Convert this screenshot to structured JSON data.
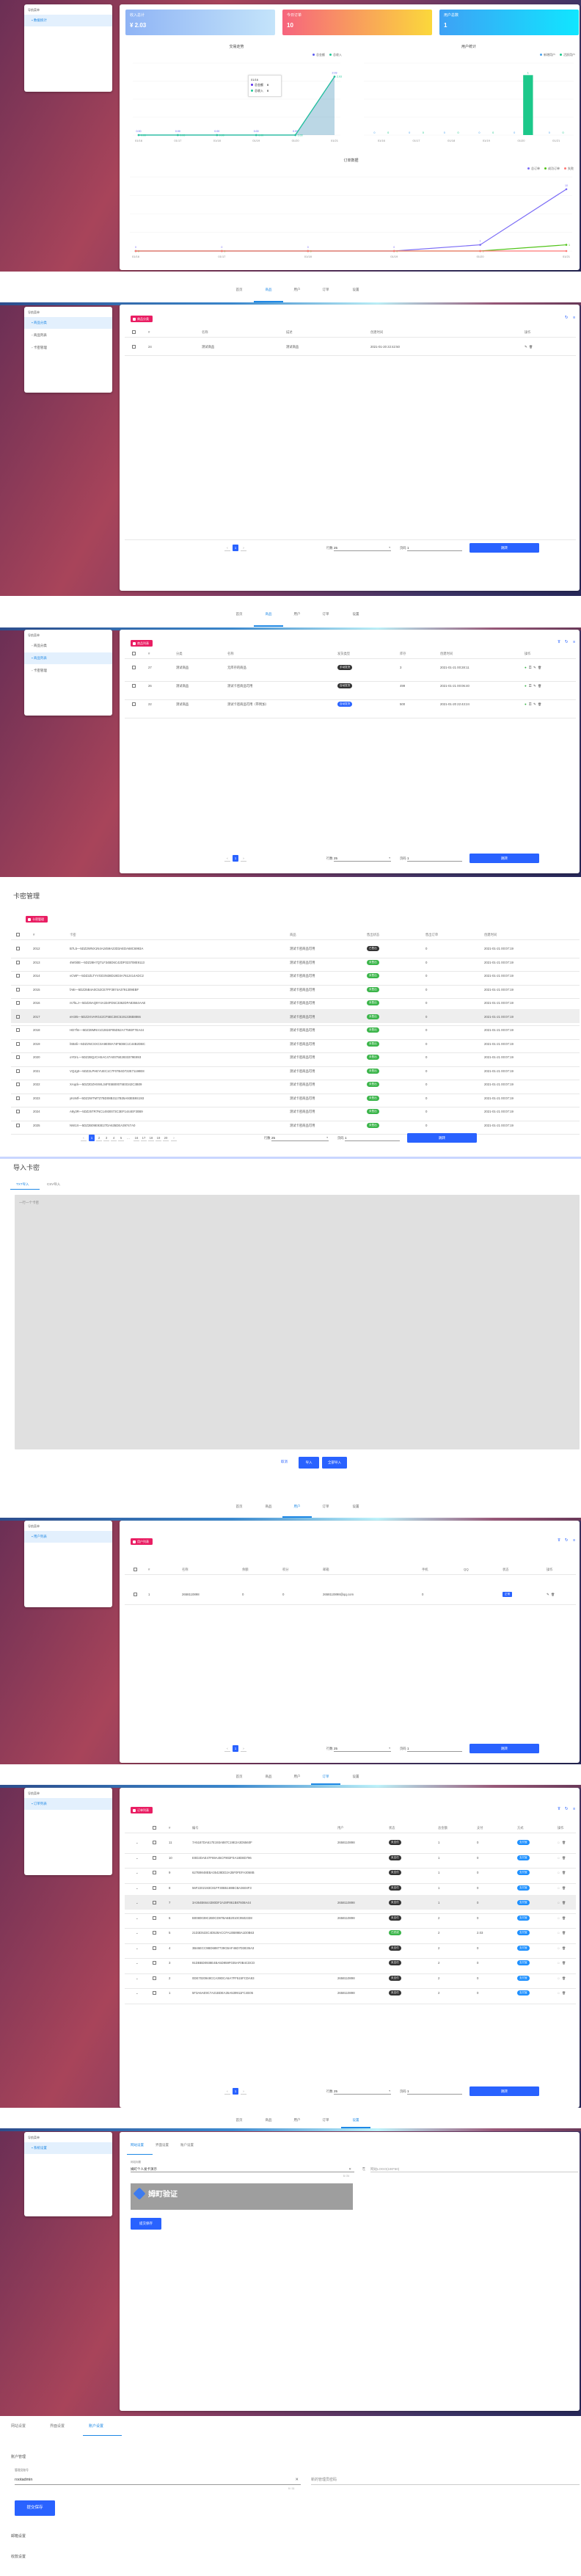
{
  "nav": {
    "items": [
      "首页",
      "商品",
      "用户",
      "订单",
      "设置"
    ]
  },
  "sidebar_header": "导航菜单",
  "dashboard": {
    "sidebar": [
      {
        "label": "数据统计",
        "icon": "home-icon"
      }
    ],
    "stats": [
      {
        "label": "收入总计",
        "value": "¥ 2.03"
      },
      {
        "label": "今日订单",
        "value": "10"
      },
      {
        "label": "用户总数",
        "value": "1"
      }
    ],
    "tooltip": {
      "date": "01/16",
      "rows": [
        {
          "name": "总金额",
          "value": "0"
        },
        {
          "name": "总收入",
          "value": "0"
        }
      ]
    }
  },
  "chart_data": [
    {
      "type": "line",
      "title": "交易走势",
      "categories": [
        "01/16",
        "01/17",
        "01/18",
        "01/19",
        "01/20",
        "01/21"
      ],
      "ylim": [
        0,
        2.5
      ],
      "grid": true,
      "legend": "top-right",
      "series": [
        {
          "name": "总金额",
          "values": [
            0,
            0,
            0,
            0,
            0,
            2.03
          ],
          "color": "#5b5bf0"
        },
        {
          "name": "总收入",
          "values": [
            0,
            0,
            0,
            0,
            0,
            2.03
          ],
          "color": "#20c997"
        }
      ]
    },
    {
      "type": "bar",
      "title": "用户统计",
      "categories": [
        "01/16",
        "01/17",
        "01/18",
        "01/19",
        "01/20",
        "01/21"
      ],
      "ylim": [
        0,
        1.2
      ],
      "grid": true,
      "legend": "top-right",
      "series": [
        {
          "name": "新增用户",
          "values": [
            0,
            0,
            0,
            0,
            0,
            0
          ],
          "color": "#4aa3f0"
        },
        {
          "name": "活跃用户",
          "values": [
            0,
            0,
            0,
            0,
            1,
            0
          ],
          "color": "#1cc88a"
        }
      ]
    },
    {
      "type": "line",
      "title": "订单数据",
      "categories": [
        "01/16",
        "01/17",
        "01/18",
        "01/19",
        "01/20",
        "01/21"
      ],
      "ylim": [
        0,
        12
      ],
      "grid": true,
      "legend": "top-right",
      "series": [
        {
          "name": "总订单",
          "values": [
            0,
            0,
            0,
            0,
            1,
            10
          ],
          "color": "#7b6cf6"
        },
        {
          "name": "成功订单",
          "values": [
            0,
            0,
            0,
            0,
            0,
            1
          ],
          "color": "#52c41a"
        },
        {
          "name": "失败",
          "values": [
            0,
            0,
            0,
            0,
            0,
            0
          ],
          "color": "#ff7875"
        }
      ]
    }
  ],
  "goods_sidebar": [
    {
      "label": "商品分类"
    },
    {
      "label": "商品列表"
    },
    {
      "label": "卡密管理"
    }
  ],
  "pagination": {
    "rows_label": "行数",
    "rows_value": "25",
    "page_label": "页码",
    "page_value": "1",
    "jump": "跳转",
    "prev": "‹",
    "next": "›"
  },
  "category": {
    "tag": "商品分类",
    "columns": [
      "#",
      "名称",
      "描述",
      "创建时间",
      "操作"
    ],
    "rows": [
      {
        "id": "24",
        "name": "测试商品",
        "desc": "测试商品",
        "created": "2021-01-20 22:42:50"
      }
    ],
    "pages": [
      "1"
    ]
  },
  "goods": {
    "tag": "商品列表",
    "columns": [
      "#",
      "分类",
      "名称",
      "发货类型",
      "库存",
      "创建时间",
      "操作"
    ],
    "rows": [
      {
        "id": "27",
        "category": "测试商品",
        "name": "无库存的商品",
        "delivery": "手动发货",
        "delivery_color": "#333333",
        "stock": "3",
        "created": "2021-01-21 00:28:11"
      },
      {
        "id": "26",
        "category": "测试商品",
        "name": "测试卡密商品可用",
        "delivery": "自动发货",
        "delivery_color": "#333333",
        "stock": "499",
        "created": "2021-01-21 00:06:40"
      },
      {
        "id": "22",
        "category": "测试商品",
        "name": "测试卡密商品可用（带附加）",
        "delivery": "自动发货",
        "delivery_color": "#2962ff",
        "stock": "500",
        "created": "2021-01-20 22:43:24"
      }
    ],
    "pages": [
      "1"
    ]
  },
  "cards": {
    "title": "卡密管理",
    "tag": "卡密管理",
    "columns": [
      "#",
      "卡密",
      "商品",
      "售出状态",
      "售出订单",
      "创建时间"
    ],
    "rows": [
      {
        "id": "2012",
        "key": "B7L5—5DZ2WNX1N4A2459A23D3AEDA68C6993A",
        "goods": "测试卡密商品可用",
        "status": "已售出",
        "status_color": "#333333",
        "order": "0",
        "created": "2021-01-21 00:07:19"
      },
      {
        "id": "2013",
        "key": "4W0i0E—5DZ28H7QTLF34BD6C42DF023708E9113",
        "goods": "测试卡密商品可用",
        "status": "未售出",
        "status_color": "#3bb54a",
        "order": "0",
        "created": "2021-01-21 00:07:19"
      },
      {
        "id": "2014",
        "key": "vCWF—5DZ2ZLTYVGD3N38D19D3A7612414ADC2",
        "goods": "测试卡密商品可用",
        "status": "未售出",
        "status_color": "#3bb54a",
        "order": "0",
        "created": "2021-01-21 00:07:19"
      },
      {
        "id": "2015",
        "key": "fA8i—5DZ25B4A0C52CE7FF3874A3791309EBF",
        "goods": "测试卡密商品可用",
        "status": "未售出",
        "status_color": "#3bb54a",
        "order": "0",
        "created": "2021-01-21 00:07:19"
      },
      {
        "id": "2016",
        "key": "rs7kLJ—5DZ26AQ9Y4A334FD5C3362DFA83664AAE",
        "goods": "测试卡密商品可用",
        "status": "未售出",
        "status_color": "#3bb54a",
        "order": "0",
        "created": "2021-01-21 00:07:19"
      },
      {
        "id": "2017",
        "key": "eH3I5—5DZ2XVARG42CF5BC38C5191336B8866",
        "goods": "测试卡密商品可用",
        "status": "未售出",
        "status_color": "#3bb54a",
        "order": "0",
        "created": "2021-01-21 00:07:19"
      },
      {
        "id": "2018",
        "key": "HD7fm—5DZ28MNV1G2824F85D52A77593F7EA44",
        "goods": "测试卡密商品可用",
        "status": "未售出",
        "status_color": "#3bb54a",
        "order": "0",
        "created": "2021-01-21 00:07:19"
      },
      {
        "id": "2019",
        "key": "lSB4li—5DZ2NCSXCSA9E08A74F5DBC1C44B2DBC",
        "goods": "测试卡密商品可用",
        "status": "未售出",
        "status_color": "#3bb54a",
        "order": "0",
        "created": "2021-01-21 00:07:19"
      },
      {
        "id": "2020",
        "key": "oYDrL—5DZ2BQJCHSAC47A0075E2833379E893",
        "goods": "测试卡密商品可用",
        "status": "未售出",
        "status_color": "#3bb54a",
        "order": "0",
        "created": "2021-01-21 00:07:19"
      },
      {
        "id": "2021",
        "key": "VQJg0—5DZ2LPHEYUEC1C7F07B4D722E71198E8",
        "goods": "测试卡密商品可用",
        "status": "未售出",
        "status_color": "#3bb54a",
        "order": "0",
        "created": "2021-01-21 00:07:19"
      },
      {
        "id": "2022",
        "key": "XAqck—5DZ2DZHSWL34FE5B00075E0342C3B09",
        "goods": "测试卡密商品可用",
        "status": "未售出",
        "status_color": "#3bb54a",
        "order": "0",
        "created": "2021-01-21 00:07:19"
      },
      {
        "id": "2023",
        "key": "yKnMf—5DZ2WTMTZ7BD08B3117B35A93EB9S193",
        "goods": "测试卡密商品可用",
        "status": "未售出",
        "status_color": "#3bb54a",
        "order": "0",
        "created": "2021-01-21 00:07:19"
      },
      {
        "id": "2024",
        "key": "A8y3R—5DZ25TR7NC14930073C3EF1444EF30B9",
        "goods": "测试卡密商品可用",
        "status": "未售出",
        "status_color": "#3bb54a",
        "order": "0",
        "created": "2021-01-21 00:07:19"
      },
      {
        "id": "2025",
        "key": "NW1X—5DZ2B09E93E27DA635DEA39747A0",
        "goods": "测试卡密商品可用",
        "status": "未售出",
        "status_color": "#3bb54a",
        "order": "0",
        "created": "2021-01-21 00:07:19"
      }
    ],
    "pages": [
      "1",
      "2",
      "3",
      "4",
      "5",
      "…",
      "16",
      "17",
      "18",
      "19",
      "20"
    ]
  },
  "import": {
    "title": "导入卡密",
    "tabs": [
      "TXT导入",
      "CSV导入"
    ],
    "placeholder": "一行一个卡密",
    "cancel": "取消",
    "import": "导入",
    "import_all": "全部导入"
  },
  "users": {
    "sidebar": [
      {
        "label": "用户列表"
      }
    ],
    "tag": "用户列表",
    "columns": [
      "#",
      "名称",
      "余额",
      "积分",
      "邮箱",
      "手机",
      "QQ",
      "状态",
      "操作"
    ],
    "rows": [
      {
        "id": "1",
        "name": "2658110898",
        "balance": "0",
        "points": "0",
        "email": "2658110898@qq.com",
        "phone": "0",
        "qq": "",
        "status": "正常"
      }
    ],
    "pages": [
      "1"
    ]
  },
  "orders": {
    "sidebar": [
      {
        "label": "订单列表"
      }
    ],
    "tag": "订单列表",
    "columns": [
      "#",
      "编号",
      "用户",
      "状态",
      "总金额",
      "支付",
      "方式",
      "操作"
    ],
    "rows": [
      {
        "id": "11",
        "no": "7A5187DA617E193A887C19E2A3D5560F",
        "user": "2658110898",
        "status": "未支付",
        "status_color": "#333333",
        "total": "1",
        "paid": "0",
        "method": "支付宝"
      },
      {
        "id": "10",
        "no": "E0D2DAE47F69A45CF902F0A18D8D796",
        "user": "",
        "status": "未支付",
        "status_color": "#333333",
        "total": "1",
        "paid": "0",
        "method": "支付宝"
      },
      {
        "id": "9",
        "no": "627B9848EBA35428DD2A35F0FEFA3068B",
        "user": "",
        "status": "未支付",
        "status_color": "#333333",
        "total": "1",
        "paid": "0",
        "method": "支付宝"
      },
      {
        "id": "8",
        "no": "56F2202193C81FF30B5169BCBA3604F3",
        "user": "",
        "status": "未支付",
        "status_color": "#333333",
        "total": "1",
        "paid": "0",
        "method": "支付宝"
      },
      {
        "id": "7",
        "no": "3A364B6644380DF2A28F861B87608A44",
        "user": "2658110898",
        "status": "未支付",
        "status_color": "#333333",
        "total": "1",
        "paid": "0",
        "method": "支付宝"
      },
      {
        "id": "6",
        "no": "B0080039C2B0CD97BA6B2010C9502338",
        "user": "2658110898",
        "status": "未支付",
        "status_color": "#333333",
        "total": "2",
        "paid": "0",
        "method": "支付宝"
      },
      {
        "id": "5",
        "no": "21D3D533C4D528ACCFA10B89BA1D0B63",
        "user": "",
        "status": "已完成",
        "status_color": "#3bb54a",
        "total": "2",
        "paid": "2.03",
        "method": "支付宝"
      },
      {
        "id": "4",
        "no": "3B46ECC9BD6887739CBAF46D7D3E35A3",
        "user": "",
        "status": "未支付",
        "status_color": "#333333",
        "total": "2",
        "paid": "0",
        "method": "支付宝"
      },
      {
        "id": "3",
        "no": "91DBBD0938E4BA5D959F035AF0B4CDCD",
        "user": "",
        "status": "未支付",
        "status_color": "#333333",
        "total": "2",
        "paid": "0",
        "method": "支付宝"
      },
      {
        "id": "2",
        "no": "0DE7020948CCA39DCA5A7FF515FCDA93",
        "user": "2658110898",
        "status": "未支付",
        "status_color": "#333333",
        "total": "2",
        "paid": "0",
        "method": "支付宝"
      },
      {
        "id": "1",
        "no": "5F3A6AE9C7A21BDEA35A539911FC4E05",
        "user": "2658110898",
        "status": "未支付",
        "status_color": "#333333",
        "total": "2",
        "paid": "0",
        "method": "支付宝"
      }
    ],
    "pages": [
      "1"
    ]
  },
  "settings": {
    "sidebar": [
      {
        "label": "系统设置"
      }
    ],
    "tabs": [
      "网站设置",
      "界面设置",
      "账户设置"
    ],
    "site_title_label": "网站标题",
    "site_title": "姆町个人发卡演示",
    "site_title_count": "8 / 24",
    "logo_placeholder": "网站LOGO(190*50)",
    "logo_text": "姆町验证",
    "save": "提交保存"
  },
  "account": {
    "tabs": [
      "网站设置",
      "界面设置",
      "账户设置"
    ],
    "section": "账户管理",
    "admin_label": "管理员账号",
    "admin_value": "rootadmin",
    "admin_count": "9 / 11",
    "password_placeholder": "新的管理员密码",
    "save": "提交保存",
    "mail": "邮箱设置",
    "payment": "收款设置"
  }
}
